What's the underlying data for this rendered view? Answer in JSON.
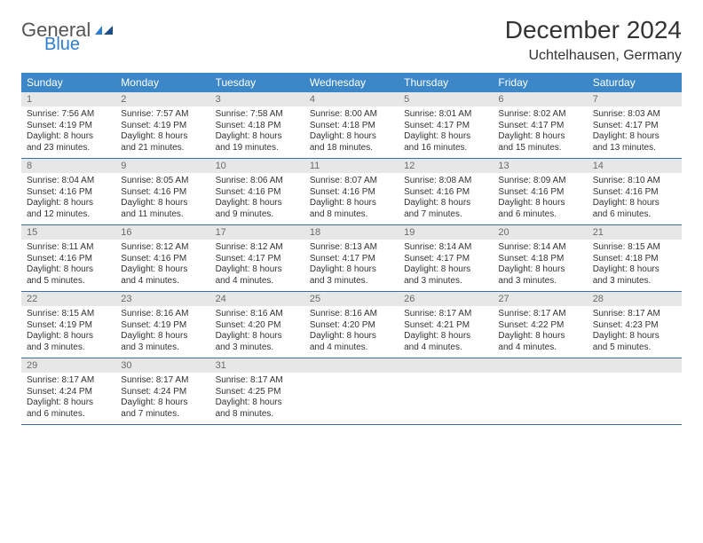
{
  "logo": {
    "word1": "General",
    "word2": "Blue"
  },
  "title": "December 2024",
  "subtitle": "Uchtelhausen, Germany",
  "colors": {
    "header_bg": "#3b87c8",
    "header_fg": "#ffffff",
    "daynum_bg": "#e7e7e7",
    "daynum_fg": "#6b6b6b",
    "row_border": "#3b6fa0",
    "logo_accent": "#2d7dd2"
  },
  "day_headers": [
    "Sunday",
    "Monday",
    "Tuesday",
    "Wednesday",
    "Thursday",
    "Friday",
    "Saturday"
  ],
  "weeks": [
    [
      {
        "n": "1",
        "sunrise": "7:56 AM",
        "sunset": "4:19 PM",
        "daylight": "8 hours and 23 minutes."
      },
      {
        "n": "2",
        "sunrise": "7:57 AM",
        "sunset": "4:19 PM",
        "daylight": "8 hours and 21 minutes."
      },
      {
        "n": "3",
        "sunrise": "7:58 AM",
        "sunset": "4:18 PM",
        "daylight": "8 hours and 19 minutes."
      },
      {
        "n": "4",
        "sunrise": "8:00 AM",
        "sunset": "4:18 PM",
        "daylight": "8 hours and 18 minutes."
      },
      {
        "n": "5",
        "sunrise": "8:01 AM",
        "sunset": "4:17 PM",
        "daylight": "8 hours and 16 minutes."
      },
      {
        "n": "6",
        "sunrise": "8:02 AM",
        "sunset": "4:17 PM",
        "daylight": "8 hours and 15 minutes."
      },
      {
        "n": "7",
        "sunrise": "8:03 AM",
        "sunset": "4:17 PM",
        "daylight": "8 hours and 13 minutes."
      }
    ],
    [
      {
        "n": "8",
        "sunrise": "8:04 AM",
        "sunset": "4:16 PM",
        "daylight": "8 hours and 12 minutes."
      },
      {
        "n": "9",
        "sunrise": "8:05 AM",
        "sunset": "4:16 PM",
        "daylight": "8 hours and 11 minutes."
      },
      {
        "n": "10",
        "sunrise": "8:06 AM",
        "sunset": "4:16 PM",
        "daylight": "8 hours and 9 minutes."
      },
      {
        "n": "11",
        "sunrise": "8:07 AM",
        "sunset": "4:16 PM",
        "daylight": "8 hours and 8 minutes."
      },
      {
        "n": "12",
        "sunrise": "8:08 AM",
        "sunset": "4:16 PM",
        "daylight": "8 hours and 7 minutes."
      },
      {
        "n": "13",
        "sunrise": "8:09 AM",
        "sunset": "4:16 PM",
        "daylight": "8 hours and 6 minutes."
      },
      {
        "n": "14",
        "sunrise": "8:10 AM",
        "sunset": "4:16 PM",
        "daylight": "8 hours and 6 minutes."
      }
    ],
    [
      {
        "n": "15",
        "sunrise": "8:11 AM",
        "sunset": "4:16 PM",
        "daylight": "8 hours and 5 minutes."
      },
      {
        "n": "16",
        "sunrise": "8:12 AM",
        "sunset": "4:16 PM",
        "daylight": "8 hours and 4 minutes."
      },
      {
        "n": "17",
        "sunrise": "8:12 AM",
        "sunset": "4:17 PM",
        "daylight": "8 hours and 4 minutes."
      },
      {
        "n": "18",
        "sunrise": "8:13 AM",
        "sunset": "4:17 PM",
        "daylight": "8 hours and 3 minutes."
      },
      {
        "n": "19",
        "sunrise": "8:14 AM",
        "sunset": "4:17 PM",
        "daylight": "8 hours and 3 minutes."
      },
      {
        "n": "20",
        "sunrise": "8:14 AM",
        "sunset": "4:18 PM",
        "daylight": "8 hours and 3 minutes."
      },
      {
        "n": "21",
        "sunrise": "8:15 AM",
        "sunset": "4:18 PM",
        "daylight": "8 hours and 3 minutes."
      }
    ],
    [
      {
        "n": "22",
        "sunrise": "8:15 AM",
        "sunset": "4:19 PM",
        "daylight": "8 hours and 3 minutes."
      },
      {
        "n": "23",
        "sunrise": "8:16 AM",
        "sunset": "4:19 PM",
        "daylight": "8 hours and 3 minutes."
      },
      {
        "n": "24",
        "sunrise": "8:16 AM",
        "sunset": "4:20 PM",
        "daylight": "8 hours and 3 minutes."
      },
      {
        "n": "25",
        "sunrise": "8:16 AM",
        "sunset": "4:20 PM",
        "daylight": "8 hours and 4 minutes."
      },
      {
        "n": "26",
        "sunrise": "8:17 AM",
        "sunset": "4:21 PM",
        "daylight": "8 hours and 4 minutes."
      },
      {
        "n": "27",
        "sunrise": "8:17 AM",
        "sunset": "4:22 PM",
        "daylight": "8 hours and 4 minutes."
      },
      {
        "n": "28",
        "sunrise": "8:17 AM",
        "sunset": "4:23 PM",
        "daylight": "8 hours and 5 minutes."
      }
    ],
    [
      {
        "n": "29",
        "sunrise": "8:17 AM",
        "sunset": "4:24 PM",
        "daylight": "8 hours and 6 minutes."
      },
      {
        "n": "30",
        "sunrise": "8:17 AM",
        "sunset": "4:24 PM",
        "daylight": "8 hours and 7 minutes."
      },
      {
        "n": "31",
        "sunrise": "8:17 AM",
        "sunset": "4:25 PM",
        "daylight": "8 hours and 8 minutes."
      },
      null,
      null,
      null,
      null
    ]
  ],
  "labels": {
    "sunrise": "Sunrise: ",
    "sunset": "Sunset: ",
    "daylight": "Daylight: "
  }
}
